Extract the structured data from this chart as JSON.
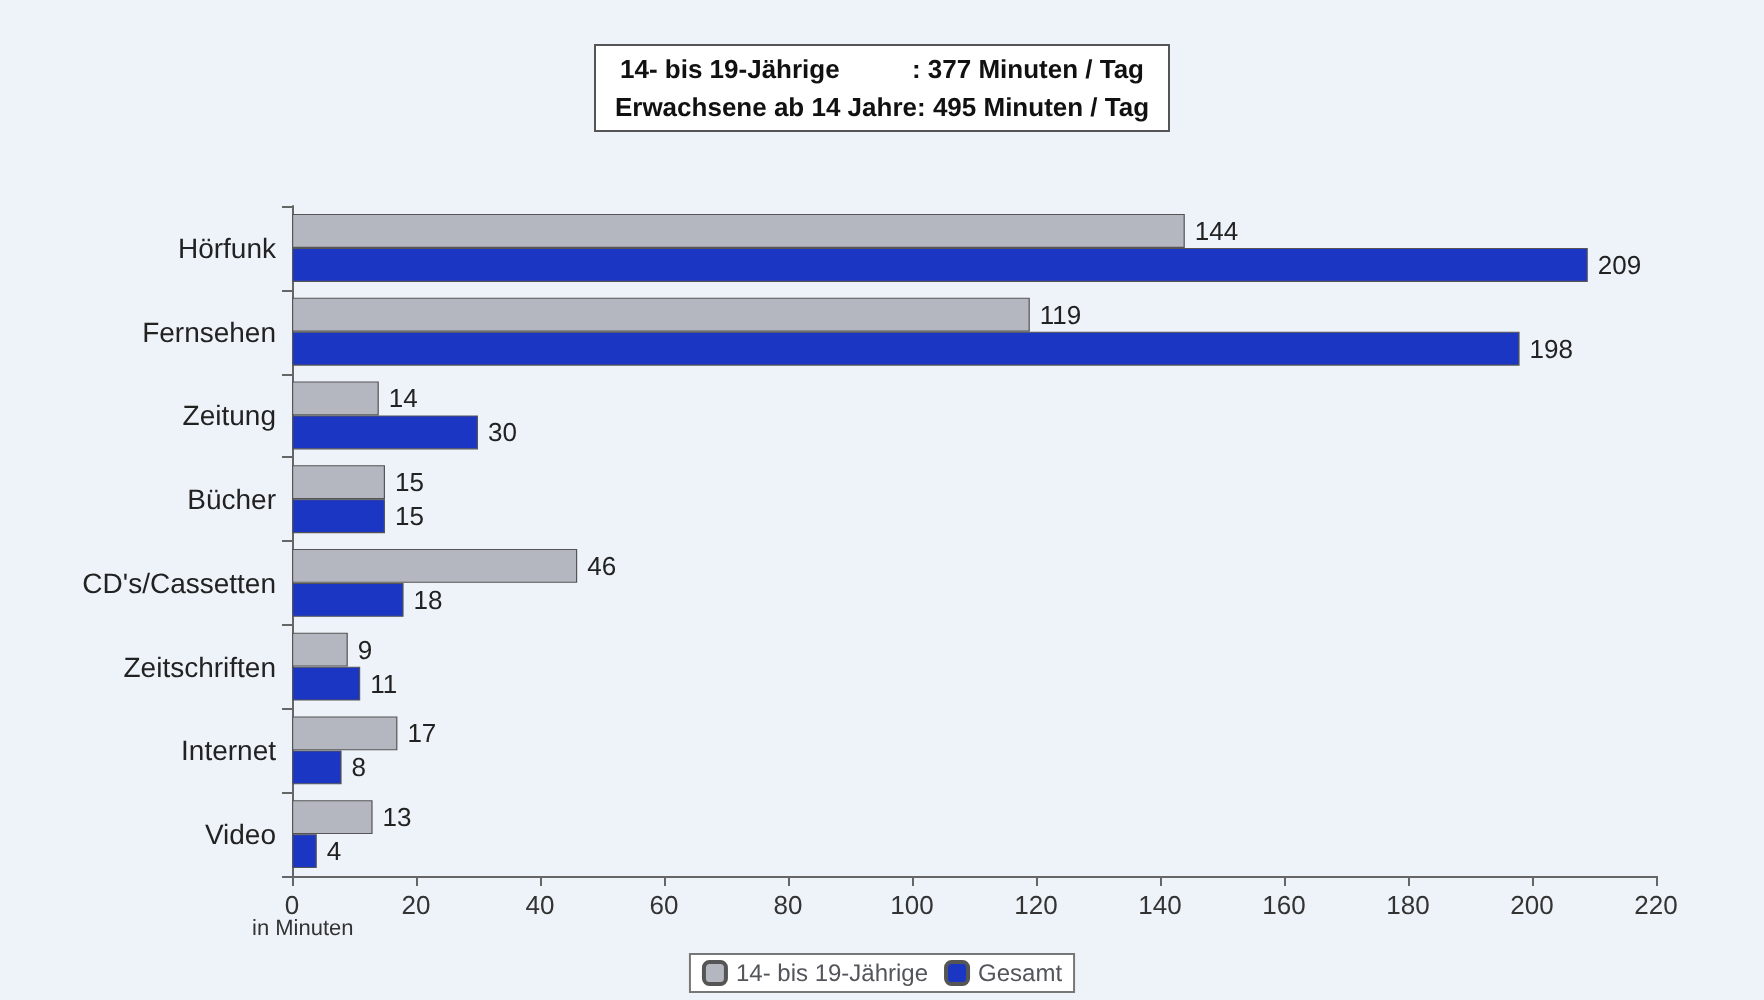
{
  "chart_data": {
    "type": "bar",
    "orientation": "horizontal",
    "title": "14- bis 19-Jährige          : 377 Minuten / Tag",
    "subtitle": "Erwachsene ab 14 Jahre: 495 Minuten / Tag",
    "ylabel": "in Minuten",
    "categories": [
      "Hörfunk",
      "Fernsehen",
      "Zeitung",
      "Bücher",
      "CD's/Cassetten",
      "Zeitschriften",
      "Internet",
      "Video"
    ],
    "series": [
      {
        "name": "14- bis 19-Jährige",
        "color": "#b4b6c0",
        "values": [
          144,
          119,
          14,
          15,
          46,
          9,
          17,
          13
        ]
      },
      {
        "name": "Gesamt",
        "color": "#1c36c4",
        "values": [
          209,
          198,
          30,
          15,
          18,
          11,
          8,
          4
        ]
      }
    ],
    "xlim": [
      0,
      220
    ],
    "xticks": [
      0,
      20,
      40,
      60,
      80,
      100,
      120,
      140,
      160,
      180,
      200,
      220
    ],
    "data_labels": true,
    "legend": "bottom",
    "grid": false
  }
}
